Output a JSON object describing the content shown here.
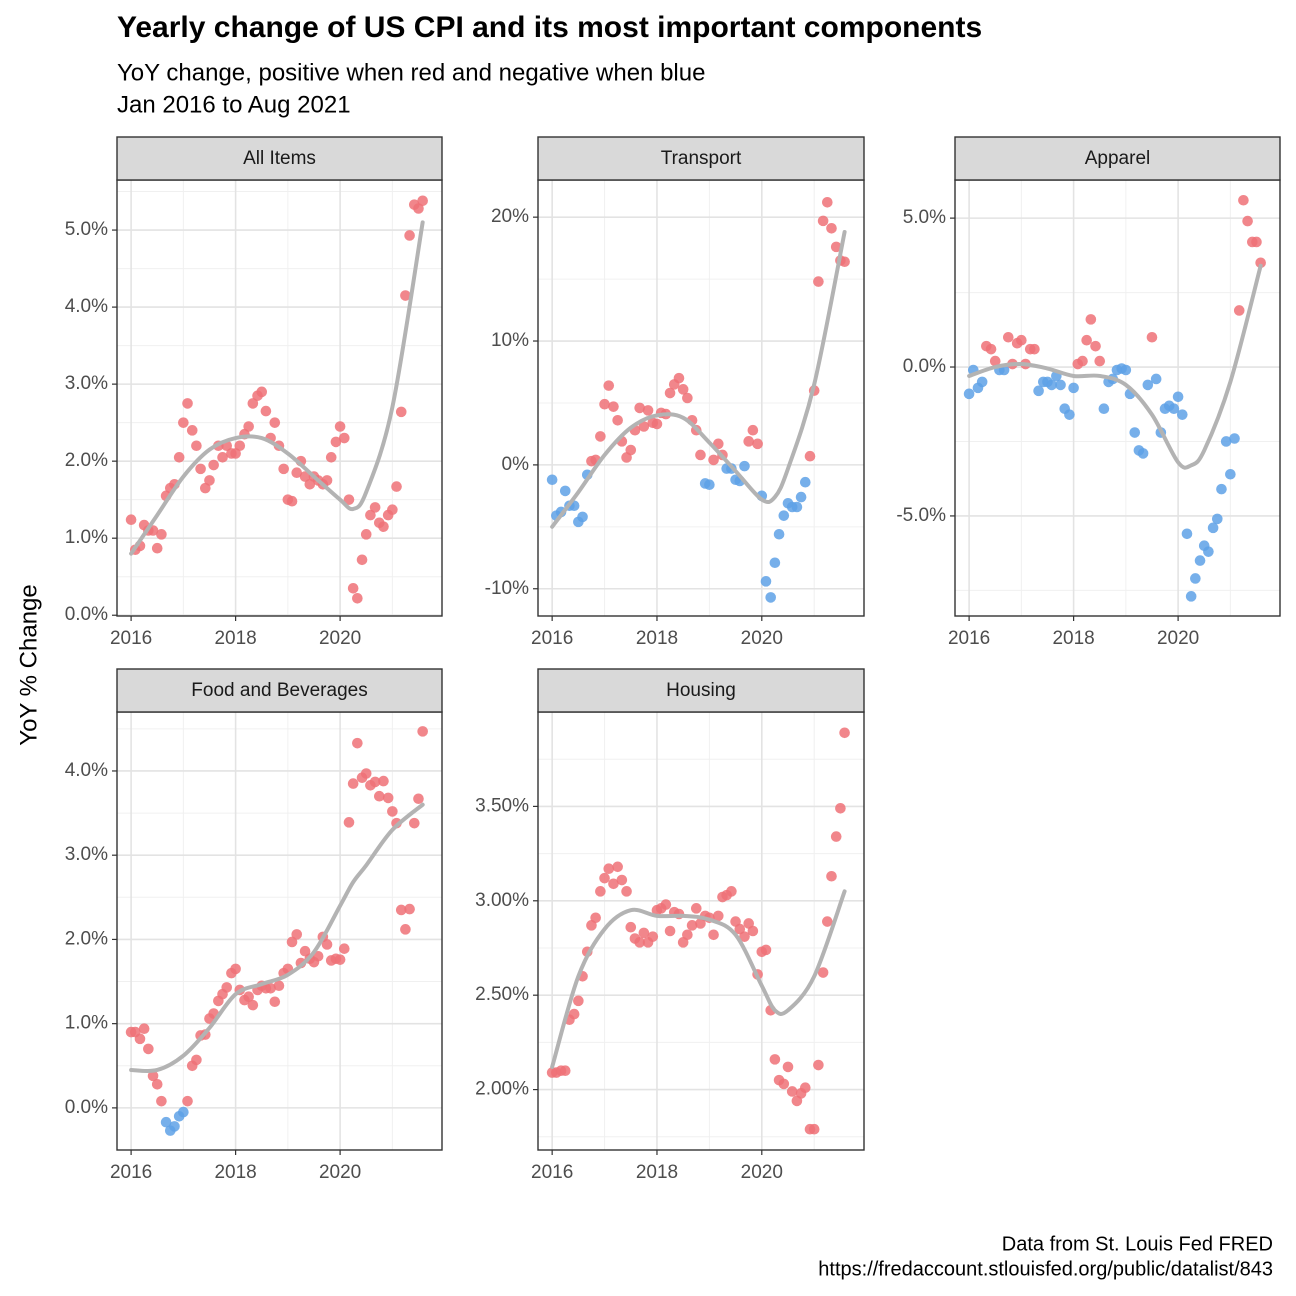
{
  "title": "Yearly change of US CPI and its most important components",
  "subtitle": [
    "YoY change, positive when red and negative when blue",
    "Jan 2016 to Aug 2021"
  ],
  "ylabel": "YoY % Change",
  "caption": [
    "Data from St. Louis Fed FRED",
    "https://fredaccount.stlouisfed.org/public/datalist/843"
  ],
  "chart_data": [
    {
      "type": "scatter",
      "title": "All Items",
      "x": [
        2016,
        2016.08,
        2016.17,
        2016.25,
        2016.33,
        2016.42,
        2016.5,
        2016.58,
        2016.67,
        2016.75,
        2016.83,
        2016.92,
        2017,
        2017.08,
        2017.17,
        2017.25,
        2017.33,
        2017.42,
        2017.5,
        2017.58,
        2017.67,
        2017.75,
        2017.83,
        2017.92,
        2018,
        2018.08,
        2018.17,
        2018.25,
        2018.33,
        2018.42,
        2018.5,
        2018.58,
        2018.67,
        2018.75,
        2018.83,
        2018.92,
        2019,
        2019.08,
        2019.17,
        2019.25,
        2019.33,
        2019.42,
        2019.5,
        2019.58,
        2019.67,
        2019.75,
        2019.83,
        2019.92,
        2020,
        2020.08,
        2020.17,
        2020.25,
        2020.33,
        2020.42,
        2020.5,
        2020.58,
        2020.67,
        2020.75,
        2020.83,
        2020.92,
        2021,
        2021.08,
        2021.17,
        2021.25,
        2021.33,
        2021.42,
        2021.5,
        2021.58
      ],
      "values": [
        1.24,
        0.85,
        0.9,
        1.17,
        1.1,
        1.1,
        0.87,
        1.05,
        1.55,
        1.65,
        1.7,
        2.05,
        2.5,
        2.75,
        2.4,
        2.2,
        1.9,
        1.65,
        1.75,
        1.95,
        2.2,
        2.05,
        2.2,
        2.1,
        2.1,
        2.2,
        2.35,
        2.45,
        2.75,
        2.85,
        2.9,
        2.65,
        2.3,
        2.5,
        2.2,
        1.9,
        1.5,
        1.48,
        1.85,
        2.0,
        1.8,
        1.7,
        1.8,
        1.75,
        1.7,
        1.75,
        2.05,
        2.25,
        2.45,
        2.3,
        1.5,
        0.35,
        0.22,
        0.72,
        1.05,
        1.3,
        1.4,
        1.2,
        1.15,
        1.3,
        1.37,
        1.67,
        2.64,
        4.15,
        4.93,
        5.33,
        5.28,
        5.38
      ],
      "xlim": [
        2015.73,
        2021.95
      ],
      "xticks": [
        2016,
        2018,
        2020
      ],
      "ylim": [
        -0.01,
        5.65
      ],
      "yticks": [
        {
          "value": 0,
          "label": "0.0%"
        },
        {
          "value": 1,
          "label": "1.0%"
        },
        {
          "value": 2,
          "label": "2.0%"
        },
        {
          "value": 3,
          "label": "3.0%"
        },
        {
          "value": 4,
          "label": "4.0%"
        },
        {
          "value": 5,
          "label": "5.0%"
        }
      ],
      "pos_color": "#ee7177",
      "neg_color": "#5ea1e6",
      "grid": true,
      "trend": {
        "color": "#b3b3b3",
        "x": [
          2016,
          2016.5,
          2017,
          2017.5,
          2018,
          2018.5,
          2019,
          2019.5,
          2020,
          2020.25,
          2020.5,
          2021,
          2021.58
        ],
        "values": [
          0.8,
          1.3,
          1.8,
          2.15,
          2.3,
          2.3,
          2.1,
          1.8,
          1.5,
          1.38,
          1.6,
          2.7,
          5.1
        ]
      }
    },
    {
      "type": "scatter",
      "title": "Transport",
      "x": [
        2016,
        2016.08,
        2016.17,
        2016.25,
        2016.33,
        2016.42,
        2016.5,
        2016.58,
        2016.67,
        2016.75,
        2016.83,
        2016.92,
        2017,
        2017.08,
        2017.17,
        2017.25,
        2017.33,
        2017.42,
        2017.5,
        2017.58,
        2017.67,
        2017.75,
        2017.83,
        2017.92,
        2018,
        2018.08,
        2018.17,
        2018.25,
        2018.33,
        2018.42,
        2018.5,
        2018.58,
        2018.67,
        2018.75,
        2018.83,
        2018.92,
        2019,
        2019.08,
        2019.17,
        2019.25,
        2019.33,
        2019.42,
        2019.5,
        2019.58,
        2019.67,
        2019.75,
        2019.83,
        2019.92,
        2020,
        2020.08,
        2020.17,
        2020.25,
        2020.33,
        2020.42,
        2020.5,
        2020.58,
        2020.67,
        2020.75,
        2020.83,
        2020.92,
        2021,
        2021.08,
        2021.17,
        2021.25,
        2021.33,
        2021.42,
        2021.5,
        2021.58
      ],
      "values": [
        -1.2,
        -4.1,
        -3.8,
        -2.1,
        -3.3,
        -3.3,
        -4.6,
        -4.2,
        -0.8,
        0.3,
        0.4,
        2.3,
        4.9,
        6.4,
        4.7,
        3.6,
        1.9,
        0.6,
        1.2,
        2.8,
        4.6,
        3.1,
        4.4,
        3.4,
        3.3,
        4.2,
        4.1,
        5.8,
        6.5,
        7.0,
        6.1,
        5.4,
        3.6,
        2.8,
        0.8,
        -1.5,
        -1.6,
        0.4,
        1.7,
        0.8,
        -0.3,
        -0.3,
        -1.2,
        -1.3,
        -0.1,
        1.9,
        2.8,
        1.7,
        -2.5,
        -9.4,
        -10.7,
        -7.9,
        -5.6,
        -4.1,
        -3.1,
        -3.4,
        -3.4,
        -2.6,
        -1.4,
        0.7,
        6.0,
        14.8,
        19.7,
        21.2,
        19.1,
        17.6,
        16.5,
        16.4
      ],
      "xlim": [
        2015.73,
        2021.95
      ],
      "xticks": [
        2016,
        2018,
        2020
      ],
      "ylim": [
        -12.2,
        23
      ],
      "yticks": [
        {
          "value": -10,
          "label": "-10%"
        },
        {
          "value": 0,
          "label": "0%"
        },
        {
          "value": 10,
          "label": "10%"
        },
        {
          "value": 20,
          "label": "20%"
        }
      ],
      "pos_color": "#ee7177",
      "neg_color": "#5ea1e6",
      "grid": true,
      "trend": {
        "color": "#b3b3b3",
        "x": [
          2016,
          2016.5,
          2017,
          2017.5,
          2018,
          2018.5,
          2019,
          2019.5,
          2020,
          2020.25,
          2020.5,
          2021,
          2021.58
        ],
        "values": [
          -5,
          -2.2,
          0.8,
          3.0,
          4.0,
          3.8,
          1.8,
          -0.5,
          -2.8,
          -2.6,
          -0.3,
          6.5,
          18.8
        ]
      }
    },
    {
      "type": "scatter",
      "title": "Apparel",
      "x": [
        2016,
        2016.08,
        2016.17,
        2016.25,
        2016.33,
        2016.42,
        2016.5,
        2016.58,
        2016.67,
        2016.75,
        2016.83,
        2016.92,
        2017,
        2017.08,
        2017.17,
        2017.25,
        2017.33,
        2017.42,
        2017.5,
        2017.58,
        2017.67,
        2017.75,
        2017.83,
        2017.92,
        2018,
        2018.08,
        2018.17,
        2018.25,
        2018.33,
        2018.42,
        2018.5,
        2018.58,
        2018.67,
        2018.75,
        2018.83,
        2018.92,
        2019,
        2019.08,
        2019.17,
        2019.25,
        2019.33,
        2019.42,
        2019.5,
        2019.58,
        2019.67,
        2019.75,
        2019.83,
        2019.92,
        2020,
        2020.08,
        2020.17,
        2020.25,
        2020.33,
        2020.42,
        2020.5,
        2020.58,
        2020.67,
        2020.75,
        2020.83,
        2020.92,
        2021,
        2021.08,
        2021.17,
        2021.25,
        2021.33,
        2021.42,
        2021.5,
        2021.58
      ],
      "values": [
        -0.9,
        -0.1,
        -0.7,
        -0.5,
        0.7,
        0.6,
        0.2,
        -0.1,
        -0.1,
        1.0,
        0.1,
        0.8,
        0.9,
        0.1,
        0.6,
        0.6,
        -0.8,
        -0.5,
        -0.5,
        -0.6,
        -0.3,
        -0.6,
        -1.4,
        -1.6,
        -0.7,
        0.1,
        0.2,
        0.9,
        1.6,
        0.7,
        0.2,
        -1.4,
        -0.5,
        -0.4,
        -0.1,
        -0.05,
        -0.1,
        -0.9,
        -2.2,
        -2.8,
        -2.9,
        -0.6,
        1.0,
        -0.4,
        -2.2,
        -1.4,
        -1.3,
        -1.4,
        -1.0,
        -1.6,
        -5.6,
        -7.7,
        -7.1,
        -6.5,
        -6.0,
        -6.2,
        -5.4,
        -5.1,
        -4.1,
        -2.5,
        -3.6,
        -2.4,
        1.9,
        5.6,
        4.9,
        4.2,
        4.2,
        3.5
      ],
      "xlim": [
        2015.73,
        2021.95
      ],
      "xticks": [
        2016,
        2018,
        2020
      ],
      "ylim": [
        -8.36,
        6.28
      ],
      "yticks": [
        {
          "value": -5,
          "label": "-5.0%"
        },
        {
          "value": 0,
          "label": "0.0%"
        },
        {
          "value": 5,
          "label": "5.0%"
        }
      ],
      "pos_color": "#ee7177",
      "neg_color": "#5ea1e6",
      "grid": true,
      "trend": {
        "color": "#b3b3b3",
        "x": [
          2016,
          2016.5,
          2017,
          2017.5,
          2018,
          2018.5,
          2019,
          2019.5,
          2020,
          2020.25,
          2020.5,
          2021,
          2021.58
        ],
        "values": [
          -0.3,
          0.0,
          0.1,
          -0.05,
          -0.3,
          -0.3,
          -0.6,
          -1.6,
          -3.2,
          -3.3,
          -2.8,
          -0.5,
          3.4
        ]
      }
    },
    {
      "type": "scatter",
      "title": "Food and Beverages",
      "x": [
        2016,
        2016.08,
        2016.17,
        2016.25,
        2016.33,
        2016.42,
        2016.5,
        2016.58,
        2016.67,
        2016.75,
        2016.83,
        2016.92,
        2017,
        2017.08,
        2017.17,
        2017.25,
        2017.33,
        2017.42,
        2017.5,
        2017.58,
        2017.67,
        2017.75,
        2017.83,
        2017.92,
        2018,
        2018.08,
        2018.17,
        2018.25,
        2018.33,
        2018.42,
        2018.5,
        2018.58,
        2018.67,
        2018.75,
        2018.83,
        2018.92,
        2019,
        2019.08,
        2019.17,
        2019.25,
        2019.33,
        2019.42,
        2019.5,
        2019.58,
        2019.67,
        2019.75,
        2019.83,
        2019.92,
        2020,
        2020.08,
        2020.17,
        2020.25,
        2020.33,
        2020.42,
        2020.5,
        2020.58,
        2020.67,
        2020.75,
        2020.83,
        2020.92,
        2021,
        2021.08,
        2021.17,
        2021.25,
        2021.33,
        2021.42,
        2021.5,
        2021.58
      ],
      "values": [
        0.9,
        0.9,
        0.82,
        0.94,
        0.7,
        0.38,
        0.28,
        0.08,
        -0.17,
        -0.27,
        -0.22,
        -0.1,
        -0.05,
        0.08,
        0.5,
        0.57,
        0.86,
        0.87,
        1.06,
        1.12,
        1.27,
        1.35,
        1.43,
        1.6,
        1.65,
        1.4,
        1.28,
        1.32,
        1.22,
        1.4,
        1.45,
        1.42,
        1.42,
        1.26,
        1.45,
        1.6,
        1.65,
        1.97,
        2.06,
        1.72,
        1.86,
        1.77,
        1.73,
        1.8,
        2.03,
        1.94,
        1.75,
        1.77,
        1.76,
        1.89,
        3.39,
        3.85,
        4.33,
        3.92,
        3.97,
        3.83,
        3.87,
        3.7,
        3.88,
        3.68,
        3.52,
        3.38,
        2.35,
        2.12,
        2.36,
        3.38,
        3.67,
        4.47
      ],
      "xlim": [
        2015.73,
        2021.95
      ],
      "xticks": [
        2016,
        2018,
        2020
      ],
      "ylim": [
        -0.5,
        4.7
      ],
      "yticks": [
        {
          "value": 0,
          "label": "0.0%"
        },
        {
          "value": 1,
          "label": "1.0%"
        },
        {
          "value": 2,
          "label": "2.0%"
        },
        {
          "value": 3,
          "label": "3.0%"
        },
        {
          "value": 4,
          "label": "4.0%"
        }
      ],
      "pos_color": "#ee7177",
      "neg_color": "#5ea1e6",
      "grid": true,
      "trend": {
        "color": "#b3b3b3",
        "x": [
          2016,
          2016.5,
          2017,
          2017.5,
          2018,
          2018.5,
          2019,
          2019.5,
          2020,
          2020.25,
          2020.5,
          2021,
          2021.58
        ],
        "values": [
          0.45,
          0.45,
          0.62,
          0.95,
          1.35,
          1.47,
          1.58,
          1.85,
          2.4,
          2.68,
          2.88,
          3.3,
          3.6
        ]
      }
    },
    {
      "type": "scatter",
      "title": "Housing",
      "x": [
        2016,
        2016.08,
        2016.17,
        2016.25,
        2016.33,
        2016.42,
        2016.5,
        2016.58,
        2016.67,
        2016.75,
        2016.83,
        2016.92,
        2017,
        2017.08,
        2017.17,
        2017.25,
        2017.33,
        2017.42,
        2017.5,
        2017.58,
        2017.67,
        2017.75,
        2017.83,
        2017.92,
        2018,
        2018.08,
        2018.17,
        2018.25,
        2018.33,
        2018.42,
        2018.5,
        2018.58,
        2018.67,
        2018.75,
        2018.83,
        2018.92,
        2019,
        2019.08,
        2019.17,
        2019.25,
        2019.33,
        2019.42,
        2019.5,
        2019.58,
        2019.67,
        2019.75,
        2019.83,
        2019.92,
        2020,
        2020.08,
        2020.17,
        2020.25,
        2020.33,
        2020.42,
        2020.5,
        2020.58,
        2020.67,
        2020.75,
        2020.83,
        2020.92,
        2021,
        2021.08,
        2021.17,
        2021.25,
        2021.33,
        2021.42,
        2021.5,
        2021.58
      ],
      "values": [
        2.09,
        2.09,
        2.1,
        2.1,
        2.37,
        2.4,
        2.47,
        2.6,
        2.73,
        2.87,
        2.91,
        3.05,
        3.12,
        3.17,
        3.09,
        3.18,
        3.11,
        3.05,
        2.86,
        2.8,
        2.78,
        2.83,
        2.78,
        2.81,
        2.95,
        2.96,
        2.98,
        2.84,
        2.94,
        2.93,
        2.78,
        2.82,
        2.87,
        2.96,
        2.88,
        2.92,
        2.91,
        2.82,
        2.92,
        3.02,
        3.03,
        3.05,
        2.89,
        2.85,
        2.81,
        2.88,
        2.84,
        2.61,
        2.73,
        2.74,
        2.42,
        2.16,
        2.05,
        2.03,
        2.12,
        1.99,
        1.94,
        1.98,
        2.01,
        1.79,
        1.79,
        2.13,
        2.62,
        2.89,
        3.13,
        3.34,
        3.49,
        3.89
      ],
      "xlim": [
        2015.73,
        2021.95
      ],
      "xticks": [
        2016,
        2018,
        2020
      ],
      "ylim": [
        1.68,
        4.0
      ],
      "yticks": [
        {
          "value": 2.0,
          "label": "2.00%"
        },
        {
          "value": 2.5,
          "label": "2.50%"
        },
        {
          "value": 3.0,
          "label": "3.00%"
        },
        {
          "value": 3.5,
          "label": "3.50%"
        }
      ],
      "pos_color": "#ee7177",
      "neg_color": "#5ea1e6",
      "grid": true,
      "trend": {
        "color": "#b3b3b3",
        "x": [
          2016,
          2016.5,
          2017,
          2017.5,
          2018,
          2018.5,
          2019,
          2019.5,
          2020,
          2020.25,
          2020.5,
          2021,
          2021.58
        ],
        "values": [
          2.12,
          2.6,
          2.85,
          2.95,
          2.92,
          2.92,
          2.9,
          2.82,
          2.55,
          2.42,
          2.42,
          2.6,
          3.05
        ]
      }
    }
  ]
}
